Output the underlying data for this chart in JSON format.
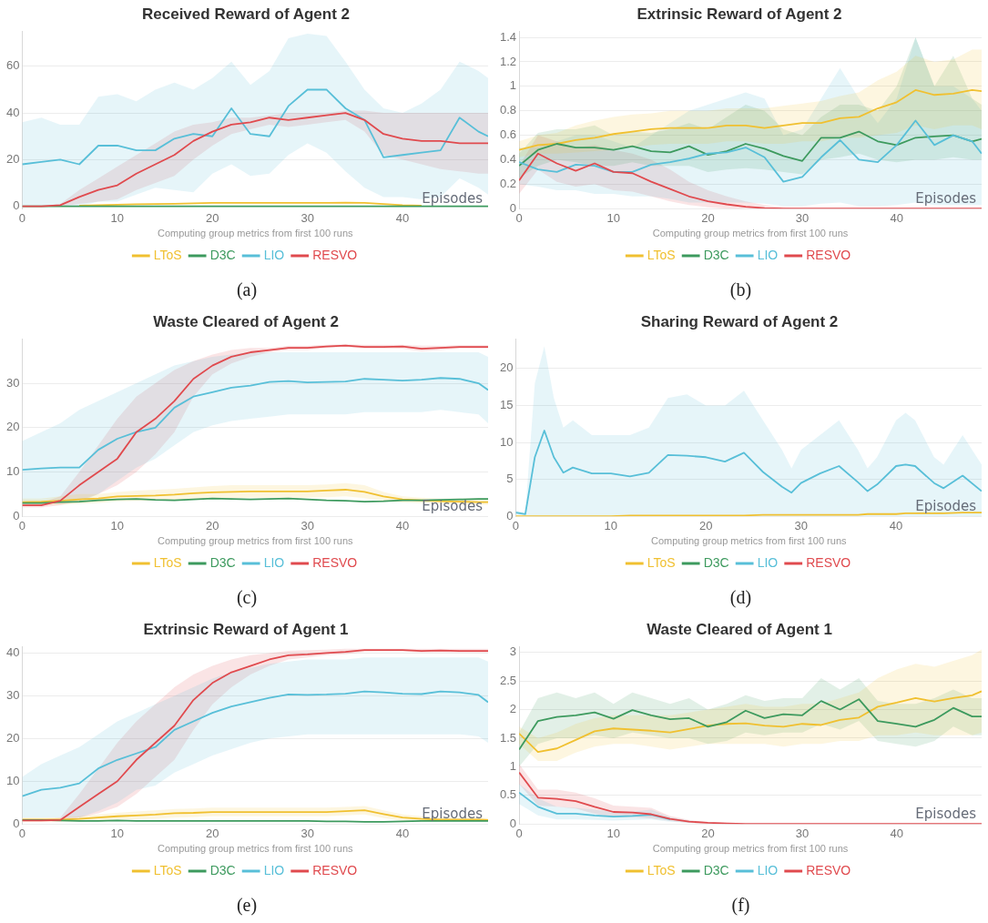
{
  "chart_data": [
    {
      "type": "line",
      "title": "Received Reward of Agent 2",
      "xlabel": "Episodes",
      "annotations": [
        "Computing group metrics from first 100 runs",
        "(a)"
      ],
      "x": [
        0,
        2,
        4,
        6,
        8,
        10,
        12,
        14,
        16,
        18,
        20,
        22,
        24,
        26,
        28,
        30,
        32,
        34,
        36,
        38,
        40,
        42,
        44,
        46,
        48,
        49
      ],
      "xlim": [
        0,
        49
      ],
      "xticks": [
        0,
        10,
        20,
        30,
        40
      ],
      "ylim": [
        -1,
        75
      ],
      "yticks": [
        0,
        20,
        40,
        60
      ],
      "grid": "y",
      "legend": "bottom",
      "marker": "none",
      "line_style": "solid",
      "series": [
        {
          "name": "LToS",
          "color": "#f0c030",
          "values": [
            null,
            null,
            null,
            0.3,
            0.5,
            0.7,
            0.9,
            1,
            1.1,
            1.3,
            1.5,
            1.5,
            1.5,
            1.5,
            1.5,
            1.5,
            1.5,
            1.6,
            1.5,
            1,
            0.5,
            0.3,
            null,
            null,
            null,
            null
          ]
        },
        {
          "name": "D3C",
          "color": "#3d9a5e",
          "values": [
            0,
            0,
            0,
            0,
            0,
            0,
            0,
            0,
            0,
            0,
            0,
            0,
            0,
            0,
            0,
            0,
            0,
            0,
            0,
            0,
            0,
            0,
            0,
            0,
            0,
            0
          ]
        },
        {
          "name": "LIO",
          "color": "#58bfd8",
          "values": [
            18,
            19,
            20,
            18,
            26,
            26,
            24,
            24,
            29,
            31,
            30,
            42,
            31,
            30,
            43,
            50,
            50,
            42,
            37,
            21,
            22,
            23,
            24,
            38,
            32,
            30
          ],
          "lower": [
            0,
            0,
            0,
            0,
            2,
            2,
            5,
            8,
            7,
            6,
            14,
            18,
            13,
            14,
            22,
            27,
            23,
            15,
            8,
            4,
            4,
            3,
            4,
            12,
            8,
            5
          ],
          "upper": [
            36,
            38,
            35,
            35,
            47,
            48,
            45,
            50,
            53,
            50,
            55,
            62,
            52,
            58,
            72,
            74,
            73,
            62,
            50,
            42,
            40,
            44,
            50,
            62,
            58,
            55
          ]
        },
        {
          "name": "RESVO",
          "color": "#e04a4e",
          "values": [
            0,
            0,
            0.5,
            4,
            7,
            9,
            14,
            18,
            22,
            28,
            32,
            35,
            36,
            38,
            37,
            38,
            39,
            40,
            37,
            31,
            29,
            28,
            28,
            27,
            27,
            27
          ],
          "lower": [
            0,
            0,
            0,
            1,
            2,
            3,
            7,
            10,
            13,
            20,
            26,
            31,
            33,
            35,
            34,
            35,
            36,
            37,
            32,
            22,
            20,
            18,
            16,
            15,
            14,
            14
          ],
          "upper": [
            0,
            0,
            1,
            7,
            12,
            17,
            22,
            27,
            32,
            35,
            36,
            38,
            38,
            39,
            40,
            40,
            40,
            41,
            41,
            40,
            40,
            40,
            40,
            40,
            40,
            40
          ]
        }
      ]
    },
    {
      "type": "line",
      "title": "Extrinsic Reward of Agent 2",
      "xlabel": "Episodes",
      "annotations": [
        "Computing group metrics from first 100 runs",
        "(b)"
      ],
      "x": [
        0,
        2,
        4,
        6,
        8,
        10,
        12,
        14,
        16,
        18,
        20,
        22,
        24,
        26,
        28,
        30,
        32,
        34,
        36,
        38,
        40,
        42,
        44,
        46,
        48,
        49
      ],
      "xlim": [
        0,
        49
      ],
      "xticks": [
        0,
        10,
        20,
        30,
        40
      ],
      "ylim": [
        0,
        1.45
      ],
      "yticks": [
        0,
        0.2,
        0.4,
        0.6,
        0.8,
        1,
        1.2,
        1.4
      ],
      "grid": "y",
      "legend": "bottom",
      "marker": "none",
      "line_style": "solid",
      "series": [
        {
          "name": "LToS",
          "color": "#f0c030",
          "values": [
            0.48,
            0.52,
            0.53,
            0.56,
            0.58,
            0.61,
            0.63,
            0.65,
            0.66,
            0.66,
            0.66,
            0.68,
            0.68,
            0.66,
            0.68,
            0.7,
            0.7,
            0.74,
            0.75,
            0.82,
            0.87,
            0.97,
            0.93,
            0.94,
            0.97,
            0.96
          ],
          "lower": [
            0.42,
            0.45,
            0.45,
            0.46,
            0.47,
            0.48,
            0.5,
            0.52,
            0.53,
            0.53,
            0.53,
            0.55,
            0.55,
            0.53,
            0.53,
            0.55,
            0.55,
            0.58,
            0.58,
            0.6,
            0.62,
            0.68,
            0.65,
            0.68,
            0.68,
            0.65
          ],
          "upper": [
            0.55,
            0.6,
            0.62,
            0.68,
            0.72,
            0.75,
            0.77,
            0.78,
            0.8,
            0.8,
            0.8,
            0.82,
            0.82,
            0.82,
            0.84,
            0.86,
            0.88,
            0.92,
            0.95,
            1.05,
            1.12,
            1.25,
            1.2,
            1.22,
            1.3,
            1.3
          ]
        },
        {
          "name": "D3C",
          "color": "#3d9a5e",
          "values": [
            0.35,
            0.48,
            0.53,
            0.5,
            0.5,
            0.48,
            0.51,
            0.47,
            0.46,
            0.51,
            0.44,
            0.47,
            0.53,
            0.49,
            0.43,
            0.39,
            0.58,
            0.58,
            0.63,
            0.55,
            0.52,
            0.58,
            0.59,
            0.6,
            0.55,
            0.57
          ],
          "lower": [
            0.25,
            0.35,
            0.4,
            0.38,
            0.35,
            0.35,
            0.38,
            0.35,
            0.35,
            0.35,
            0.3,
            0.32,
            0.33,
            0.32,
            0.3,
            0.28,
            0.4,
            0.42,
            0.45,
            0.4,
            0.38,
            0.4,
            0.4,
            0.42,
            0.4,
            0.4
          ],
          "upper": [
            0.45,
            0.62,
            0.65,
            0.65,
            0.68,
            0.6,
            0.63,
            0.62,
            0.65,
            0.7,
            0.65,
            0.75,
            0.85,
            0.8,
            0.65,
            0.6,
            0.75,
            0.85,
            0.85,
            0.8,
            1,
            1.4,
            1,
            1.25,
            0.9,
            0.85
          ]
        },
        {
          "name": "LIO",
          "color": "#58bfd8",
          "values": [
            0.38,
            0.32,
            0.3,
            0.36,
            0.35,
            0.3,
            0.3,
            0.36,
            0.38,
            0.41,
            0.45,
            0.46,
            0.5,
            0.42,
            0.22,
            0.26,
            0.42,
            0.56,
            0.4,
            0.38,
            0.52,
            0.72,
            0.52,
            0.6,
            0.55,
            0.45
          ],
          "lower": [
            0.2,
            0.18,
            0.15,
            0.15,
            0.12,
            0.12,
            0.1,
            0.1,
            0.08,
            0.05,
            0.05,
            0.05,
            0.05,
            0.04,
            0.02,
            0.02,
            0.04,
            0.05,
            0.02,
            0.02,
            0.03,
            0.05,
            0.03,
            0.03,
            0.03,
            0.03
          ],
          "upper": [
            0.5,
            0.5,
            0.55,
            0.6,
            0.6,
            0.55,
            0.5,
            0.6,
            0.7,
            0.8,
            0.85,
            0.9,
            0.95,
            0.9,
            0.6,
            0.65,
            0.9,
            1.15,
            0.9,
            0.7,
            0.9,
            1.4,
            1,
            1,
            0.9,
            0.8
          ]
        },
        {
          "name": "RESVO",
          "color": "#e04a4e",
          "values": [
            0.23,
            0.45,
            0.37,
            0.31,
            0.37,
            0.3,
            0.29,
            0.22,
            0.16,
            0.1,
            0.06,
            0.035,
            0.015,
            0.005,
            0,
            0,
            0,
            0,
            0,
            0,
            0,
            0,
            0,
            0,
            0,
            0
          ],
          "lower": [
            0.12,
            0.32,
            0.22,
            0.18,
            0.2,
            0.15,
            0.14,
            0.1,
            0.06,
            0.03,
            0.01,
            0,
            0,
            0,
            0,
            0,
            0,
            0,
            0,
            0,
            0,
            0,
            0,
            0,
            0,
            0
          ],
          "upper": [
            0.35,
            0.6,
            0.55,
            0.5,
            0.52,
            0.48,
            0.45,
            0.4,
            0.32,
            0.22,
            0.15,
            0.1,
            0.06,
            0.03,
            0.01,
            0,
            0,
            0,
            0,
            0,
            0,
            0,
            0,
            0,
            0,
            0
          ]
        }
      ]
    },
    {
      "type": "line",
      "title": "Waste Cleared of Agent 2",
      "xlabel": "Episodes",
      "annotations": [
        "Computing group metrics from first 100 runs",
        "(c)"
      ],
      "x": [
        0,
        2,
        4,
        6,
        8,
        10,
        12,
        14,
        16,
        18,
        20,
        22,
        24,
        26,
        28,
        30,
        32,
        34,
        36,
        38,
        40,
        42,
        44,
        46,
        48,
        49
      ],
      "xlim": [
        0,
        49
      ],
      "xticks": [
        0,
        10,
        20,
        30,
        40
      ],
      "ylim": [
        0,
        40
      ],
      "yticks": [
        0,
        10,
        20,
        30
      ],
      "grid": "y",
      "legend": "bottom",
      "marker": "none",
      "line_style": "solid",
      "series": [
        {
          "name": "LToS",
          "color": "#f0c030",
          "values": [
            3.2,
            3.3,
            3.5,
            3.8,
            4,
            4.5,
            4.6,
            4.7,
            4.9,
            5.2,
            5.4,
            5.5,
            5.6,
            5.6,
            5.6,
            5.6,
            5.8,
            6,
            5.5,
            4.5,
            3.8,
            3.6,
            3.4,
            3.3,
            3.2,
            3.2
          ],
          "lower": [
            2.4,
            2.5,
            2.6,
            2.8,
            3,
            3.4,
            3.5,
            3.5,
            3.7,
            3.9,
            4,
            4.1,
            4.2,
            4.2,
            4.2,
            4.2,
            4.3,
            4.5,
            4.1,
            3.5,
            3.1,
            3,
            2.8,
            2.7,
            2.6,
            2.6
          ],
          "upper": [
            4,
            4,
            4.5,
            5,
            5,
            5.5,
            5.8,
            6,
            6.2,
            6.5,
            6.8,
            7,
            7,
            7,
            7,
            7,
            7.2,
            7.5,
            7,
            5.5,
            4.5,
            4.2,
            4,
            4,
            4,
            4
          ]
        },
        {
          "name": "D3C",
          "color": "#3d9a5e",
          "values": [
            3,
            3,
            3.2,
            3.3,
            3.6,
            3.8,
            3.9,
            3.7,
            3.6,
            3.8,
            4,
            3.9,
            3.8,
            3.9,
            4,
            3.8,
            3.6,
            3.5,
            3.3,
            3.4,
            3.6,
            3.6,
            3.7,
            3.8,
            3.9,
            3.9
          ]
        },
        {
          "name": "LIO",
          "color": "#58bfd8",
          "values": [
            10.5,
            10.8,
            11,
            11,
            15,
            17.5,
            19,
            20,
            24.5,
            27,
            28,
            29,
            29.5,
            30.3,
            30.5,
            30.2,
            30.3,
            30.4,
            31,
            30.8,
            30.6,
            30.8,
            31.2,
            31,
            30,
            28.5
          ],
          "lower": [
            3,
            3,
            3,
            3,
            5,
            8,
            11,
            13,
            16,
            19,
            20.5,
            21.5,
            22,
            22.5,
            23,
            23,
            23,
            23,
            23.5,
            23.5,
            23.5,
            23.5,
            24,
            23.5,
            23,
            21
          ],
          "upper": [
            17,
            19,
            21,
            24,
            26,
            28,
            30,
            32,
            34,
            35,
            36,
            36.5,
            37,
            37,
            37,
            37,
            37,
            37,
            37,
            37,
            37,
            37,
            37,
            37,
            37,
            36
          ]
        },
        {
          "name": "RESVO",
          "color": "#e04a4e",
          "values": [
            2.5,
            2.5,
            3.5,
            7,
            10,
            13,
            19,
            22,
            26,
            31,
            34,
            36,
            37,
            37.5,
            38,
            38,
            38.3,
            38.5,
            38.2,
            38.2,
            38.3,
            37.8,
            38,
            38.2,
            38.2,
            38.2
          ],
          "lower": [
            2,
            2,
            2.5,
            3.5,
            5,
            7,
            10,
            14,
            19,
            27,
            32,
            34.5,
            36,
            37,
            37.5,
            37.5,
            38,
            38.2,
            37.8,
            37.8,
            37.8,
            37.2,
            37.5,
            37.8,
            37.8,
            37.8
          ],
          "upper": [
            3,
            3,
            4.5,
            10,
            16,
            22,
            27,
            30,
            33,
            35,
            36.5,
            37.5,
            38,
            38,
            38.5,
            38.5,
            38.7,
            38.8,
            38.7,
            38.7,
            38.7,
            38.5,
            38.5,
            38.6,
            38.6,
            38.6
          ]
        }
      ]
    },
    {
      "type": "line",
      "title": "Sharing Reward of Agent 2",
      "xlabel": "Episodes",
      "annotations": [
        "Computing group metrics from first 100 runs",
        "(d)"
      ],
      "x": [
        0,
        1,
        2,
        3,
        4,
        5,
        6,
        8,
        10,
        12,
        14,
        16,
        18,
        20,
        22,
        24,
        26,
        28,
        29,
        30,
        32,
        34,
        36,
        37,
        38,
        40,
        41,
        42,
        44,
        45,
        47,
        49
      ],
      "xlim": [
        0,
        49
      ],
      "xticks": [
        0,
        10,
        20,
        30,
        40
      ],
      "ylim": [
        0,
        24
      ],
      "yticks": [
        0,
        5,
        10,
        15,
        20
      ],
      "grid": "y",
      "legend": "bottom",
      "marker": "none",
      "line_style": "solid",
      "series": [
        {
          "name": "LToS",
          "color": "#f0c030",
          "values": [
            0,
            0,
            0,
            0,
            0,
            0,
            0,
            0,
            0,
            0.1,
            0.1,
            0.1,
            0.1,
            0.1,
            0.1,
            0.1,
            0.2,
            0.2,
            0.2,
            0.2,
            0.2,
            0.2,
            0.2,
            0.3,
            0.3,
            0.3,
            0.4,
            0.4,
            0.4,
            0.4,
            0.5,
            0.5
          ]
        },
        {
          "name": "D3C",
          "color": "#3d9a5e",
          "values": [
            null,
            null,
            null,
            null,
            null,
            null,
            null,
            null,
            null,
            null,
            null,
            null,
            null,
            null,
            null,
            null,
            null,
            null,
            null,
            null,
            null,
            null,
            null,
            null,
            null,
            null,
            null,
            null,
            null,
            null,
            null,
            null
          ]
        },
        {
          "name": "LIO",
          "color": "#58bfd8",
          "values": [
            0.5,
            0.3,
            8,
            11.6,
            8,
            5.9,
            6.6,
            5.8,
            5.8,
            5.4,
            5.9,
            8.3,
            8.2,
            8,
            7.4,
            8.6,
            6,
            4,
            3.2,
            4.5,
            5.8,
            6.8,
            4.6,
            3.4,
            4.3,
            6.8,
            7,
            6.8,
            4.5,
            3.8,
            5.5,
            3.4
          ],
          "lower": [
            0.2,
            0.1,
            0,
            0,
            0,
            0,
            0,
            0,
            0,
            0,
            0,
            0,
            0,
            0,
            0,
            0,
            0,
            0,
            0,
            0,
            0,
            0,
            0,
            0,
            0,
            0,
            0,
            0,
            0,
            0,
            0,
            0
          ],
          "upper": [
            0.8,
            0.5,
            18,
            23,
            16,
            12,
            13,
            11,
            11,
            11,
            12,
            16,
            16.5,
            15,
            15,
            17,
            13,
            9,
            6.5,
            9,
            11,
            13,
            9,
            6.5,
            8,
            13,
            14,
            13,
            8,
            7,
            11,
            7
          ]
        },
        {
          "name": "RESVO",
          "color": "#e04a4e",
          "values": [
            null,
            null,
            null,
            null,
            null,
            null,
            null,
            null,
            null,
            null,
            null,
            null,
            null,
            null,
            null,
            null,
            null,
            null,
            null,
            null,
            null,
            null,
            null,
            null,
            null,
            null,
            null,
            null,
            null,
            null,
            null,
            null
          ]
        }
      ]
    },
    {
      "type": "line",
      "title": "Extrinsic Reward of Agent 1",
      "xlabel": "Episodes",
      "annotations": [
        "Computing group metrics from first 100 runs",
        "(e)"
      ],
      "x": [
        0,
        2,
        4,
        6,
        8,
        10,
        12,
        14,
        16,
        18,
        20,
        22,
        24,
        26,
        28,
        30,
        32,
        34,
        36,
        38,
        40,
        42,
        44,
        46,
        48,
        49
      ],
      "xlim": [
        0,
        49
      ],
      "xticks": [
        0,
        10,
        20,
        30,
        40
      ],
      "ylim": [
        0,
        41.5
      ],
      "yticks": [
        0,
        10,
        20,
        30,
        40
      ],
      "grid": "y",
      "legend": "bottom",
      "marker": "none",
      "line_style": "solid",
      "series": [
        {
          "name": "LToS",
          "color": "#f0c030",
          "values": [
            1,
            1,
            1,
            1.2,
            1.5,
            1.8,
            2,
            2.2,
            2.5,
            2.6,
            2.8,
            2.8,
            2.8,
            2.8,
            2.8,
            2.8,
            2.8,
            3,
            3.2,
            2.3,
            1.5,
            1.2,
            1,
            1,
            1,
            0.9
          ],
          "lower": [
            0.5,
            0.5,
            0.5,
            0.6,
            0.8,
            1,
            1.1,
            1.2,
            1.5,
            1.6,
            1.8,
            1.8,
            1.8,
            1.8,
            1.8,
            1.8,
            1.8,
            2,
            2.2,
            1.4,
            0.8,
            0.6,
            0.5,
            0.5,
            0.5,
            0.4
          ],
          "upper": [
            1.5,
            1.5,
            1.5,
            1.8,
            2.2,
            2.6,
            2.9,
            3.2,
            3.5,
            3.6,
            3.8,
            3.8,
            3.8,
            3.8,
            3.8,
            3.8,
            3.8,
            4,
            4.2,
            3.2,
            2.2,
            1.8,
            1.5,
            1.5,
            1.5,
            1.4
          ]
        },
        {
          "name": "D3C",
          "color": "#3d9a5e",
          "values": [
            0.9,
            0.9,
            0.8,
            0.7,
            0.7,
            0.8,
            0.7,
            0.7,
            0.7,
            0.7,
            0.7,
            0.7,
            0.7,
            0.7,
            0.7,
            0.7,
            0.6,
            0.6,
            0.5,
            0.5,
            0.6,
            0.7,
            0.7,
            0.7,
            0.7,
            0.7
          ]
        },
        {
          "name": "LIO",
          "color": "#58bfd8",
          "values": [
            6.5,
            8,
            8.5,
            9.5,
            13,
            15,
            16.5,
            18,
            22,
            24,
            26,
            27.5,
            28.5,
            29.5,
            30.3,
            30.2,
            30.3,
            30.5,
            31,
            30.8,
            30.5,
            30.4,
            31,
            30.8,
            30.2,
            28.5
          ],
          "lower": [
            1.5,
            1.5,
            1.5,
            1.5,
            3,
            5,
            8,
            9,
            12,
            14,
            16,
            17.5,
            19,
            20,
            20.5,
            21,
            21,
            21,
            21,
            21,
            21,
            21,
            21,
            21,
            20.5,
            19
          ],
          "upper": [
            11,
            14,
            16,
            18,
            21,
            24,
            26,
            28,
            30,
            32,
            34,
            35.5,
            36.5,
            37.5,
            38,
            38.5,
            38.5,
            38.5,
            39,
            39,
            39,
            39,
            39,
            39,
            39,
            38
          ]
        },
        {
          "name": "RESVO",
          "color": "#e04a4e",
          "values": [
            0.8,
            0.8,
            0.9,
            4,
            7,
            10,
            15,
            19,
            23,
            29,
            33,
            35.5,
            37,
            38.5,
            39.5,
            39.7,
            40,
            40.3,
            40.7,
            40.7,
            40.7,
            40.5,
            40.6,
            40.5,
            40.5,
            40.5
          ],
          "lower": [
            0.6,
            0.6,
            0.6,
            1.5,
            2.5,
            4,
            7,
            11,
            15,
            22,
            28,
            32,
            35,
            37,
            38.5,
            39,
            39.5,
            39.7,
            40.3,
            40.4,
            40.4,
            40.1,
            40.2,
            40.1,
            40.1,
            40.1
          ],
          "upper": [
            1,
            1,
            1.5,
            7,
            13,
            19,
            24,
            28,
            32,
            35,
            37,
            38.5,
            39.5,
            40,
            40.5,
            40.7,
            40.8,
            41,
            41,
            41,
            41,
            41,
            41,
            41,
            41,
            41
          ]
        }
      ]
    },
    {
      "type": "line",
      "title": "Waste Cleared of Agent 1",
      "xlabel": "Episodes",
      "annotations": [
        "Computing group metrics from first 100 runs",
        "(f)"
      ],
      "x": [
        0,
        2,
        4,
        6,
        8,
        10,
        12,
        14,
        16,
        18,
        20,
        22,
        24,
        26,
        28,
        30,
        32,
        34,
        36,
        38,
        40,
        42,
        44,
        46,
        48,
        49
      ],
      "xlim": [
        0,
        49
      ],
      "xticks": [
        0,
        10,
        20,
        30,
        40
      ],
      "ylim": [
        0,
        3.1
      ],
      "yticks": [
        0,
        0.5,
        1,
        1.5,
        2,
        2.5,
        3
      ],
      "grid": "y",
      "legend": "bottom",
      "marker": "none",
      "line_style": "solid",
      "series": [
        {
          "name": "LToS",
          "color": "#f0c030",
          "values": [
            1.58,
            1.26,
            1.32,
            1.47,
            1.62,
            1.67,
            1.65,
            1.63,
            1.6,
            1.66,
            1.72,
            1.75,
            1.76,
            1.72,
            1.7,
            1.75,
            1.73,
            1.82,
            1.86,
            2.05,
            2.12,
            2.2,
            2.14,
            2.2,
            2.25,
            2.32
          ],
          "lower": [
            1.4,
            1.1,
            1.1,
            1.25,
            1.35,
            1.4,
            1.4,
            1.35,
            1.3,
            1.35,
            1.4,
            1.4,
            1.4,
            1.4,
            1.35,
            1.4,
            1.4,
            1.45,
            1.45,
            1.55,
            1.55,
            1.6,
            1.55,
            1.55,
            1.55,
            1.6
          ],
          "upper": [
            1.7,
            1.5,
            1.6,
            1.75,
            1.85,
            1.9,
            1.9,
            1.9,
            1.9,
            1.95,
            2,
            2.05,
            2.1,
            2.05,
            2.05,
            2.1,
            2.1,
            2.2,
            2.3,
            2.55,
            2.7,
            2.8,
            2.75,
            2.85,
            2.95,
            3.05
          ]
        },
        {
          "name": "D3C",
          "color": "#3d9a5e",
          "values": [
            1.3,
            1.8,
            1.87,
            1.9,
            1.95,
            1.84,
            1.99,
            1.9,
            1.83,
            1.85,
            1.7,
            1.78,
            1.98,
            1.85,
            1.92,
            1.9,
            2.15,
            2,
            2.18,
            1.8,
            1.75,
            1.7,
            1.82,
            2.03,
            1.88,
            1.88
          ],
          "lower": [
            1,
            1.4,
            1.5,
            1.5,
            1.55,
            1.5,
            1.6,
            1.55,
            1.5,
            1.5,
            1.4,
            1.45,
            1.6,
            1.55,
            1.6,
            1.6,
            1.75,
            1.65,
            1.8,
            1.45,
            1.4,
            1.35,
            1.45,
            1.7,
            1.55,
            1.55
          ],
          "upper": [
            1.6,
            2.2,
            2.3,
            2.2,
            2.3,
            2.1,
            2.3,
            2.2,
            2.1,
            2.2,
            2,
            2.1,
            2.25,
            2.15,
            2.2,
            2.2,
            2.55,
            2.35,
            2.55,
            2.15,
            2.1,
            2.1,
            2.2,
            2.35,
            2.2,
            2.2
          ]
        },
        {
          "name": "LIO",
          "color": "#58bfd8",
          "values": [
            0.55,
            0.3,
            0.18,
            0.18,
            0.15,
            0.13,
            0.14,
            0.16,
            0.08,
            null,
            null,
            null,
            null,
            null,
            null,
            null,
            null,
            null,
            null,
            null,
            null,
            null,
            null,
            null,
            null,
            null
          ],
          "lower": [
            0.35,
            0.15,
            0.08,
            0.08,
            0.07,
            0.06,
            0.07,
            0.08,
            0.04,
            0.02,
            0.01,
            0,
            0,
            0,
            0,
            0,
            0,
            0,
            0,
            0,
            0,
            0,
            0,
            0,
            0,
            0
          ],
          "upper": [
            0.7,
            0.45,
            0.3,
            0.28,
            0.25,
            0.22,
            0.22,
            0.25,
            0.12,
            0.06,
            0.03,
            0.02,
            0,
            0,
            0,
            0,
            0,
            0,
            0,
            0,
            0,
            0,
            0,
            0,
            0,
            0
          ]
        },
        {
          "name": "RESVO",
          "color": "#e04a4e",
          "values": [
            0.9,
            0.46,
            0.44,
            0.4,
            0.3,
            0.21,
            0.2,
            0.17,
            0.09,
            0.04,
            0.02,
            0.01,
            0,
            0,
            0,
            0,
            0,
            0,
            0,
            0,
            0,
            0,
            0,
            0,
            0,
            0
          ],
          "lower": [
            0.7,
            0.32,
            0.3,
            0.27,
            0.18,
            0.12,
            0.12,
            0.1,
            0.05,
            0.02,
            0.01,
            0,
            0,
            0,
            0,
            0,
            0,
            0,
            0,
            0,
            0,
            0,
            0,
            0,
            0,
            0
          ],
          "upper": [
            1.05,
            0.6,
            0.6,
            0.55,
            0.45,
            0.32,
            0.3,
            0.28,
            0.14,
            0.07,
            0.03,
            0.02,
            0,
            0,
            0,
            0,
            0,
            0,
            0,
            0,
            0,
            0,
            0,
            0,
            0,
            0
          ]
        }
      ]
    }
  ]
}
